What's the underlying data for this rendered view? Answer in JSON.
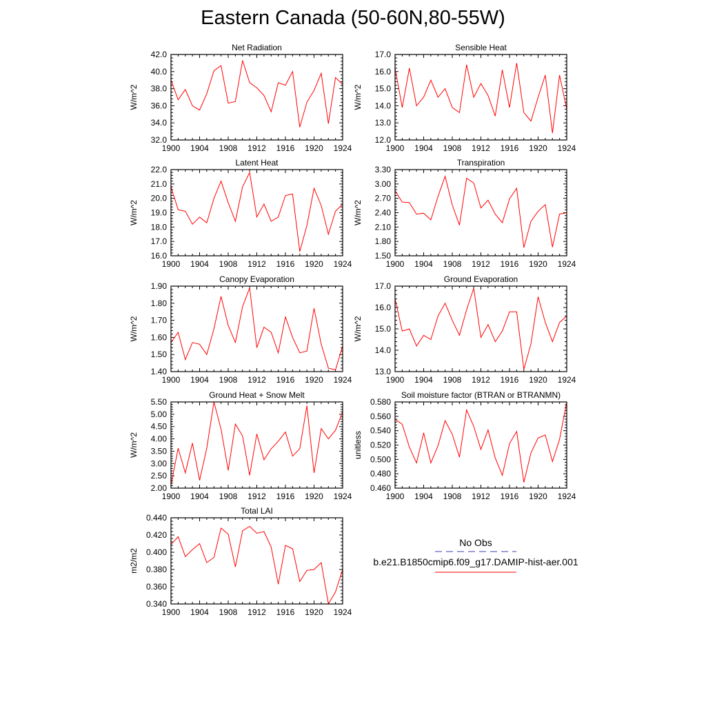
{
  "title": "Eastern Canada (50-60N,80-55W)",
  "legend": {
    "obs_label": "No Obs",
    "model_label": "b.e21.B1850cmip6.f09_g17.DAMIP-hist-aer.001",
    "obs_color": "#3b3bb0",
    "model_color": "#ff0000"
  },
  "chart_data": [
    {
      "type": "line",
      "title": "Net Radiation",
      "ylabel": "W/m^2",
      "ylim": [
        32.0,
        42.0
      ],
      "yticks": [
        32.0,
        34.0,
        36.0,
        38.0,
        40.0,
        42.0
      ],
      "ydecimals": 1,
      "xlim": [
        1900,
        1924
      ],
      "xticks": [
        1900,
        1904,
        1908,
        1912,
        1916,
        1920,
        1924
      ],
      "series": [
        {
          "color": "#ff0000",
          "x": [
            1900,
            1901,
            1902,
            1903,
            1904,
            1905,
            1906,
            1907,
            1908,
            1909,
            1910,
            1911,
            1912,
            1913,
            1914,
            1915,
            1916,
            1917,
            1918,
            1919,
            1920,
            1921,
            1922,
            1923,
            1924
          ],
          "values": [
            39.0,
            36.7,
            37.9,
            36.0,
            35.5,
            37.4,
            40.1,
            40.7,
            36.3,
            36.5,
            41.3,
            38.7,
            38.1,
            37.2,
            35.3,
            38.7,
            38.4,
            40.0,
            33.5,
            36.4,
            37.8,
            39.8,
            33.9,
            39.3,
            38.5
          ]
        }
      ]
    },
    {
      "type": "line",
      "title": "Sensible Heat",
      "ylabel": "W/m^2",
      "ylim": [
        12.0,
        17.0
      ],
      "yticks": [
        12.0,
        13.0,
        14.0,
        15.0,
        16.0,
        17.0
      ],
      "ydecimals": 1,
      "xlim": [
        1900,
        1924
      ],
      "xticks": [
        1900,
        1904,
        1908,
        1912,
        1916,
        1920,
        1924
      ],
      "series": [
        {
          "color": "#ff0000",
          "x": [
            1900,
            1901,
            1902,
            1903,
            1904,
            1905,
            1906,
            1907,
            1908,
            1909,
            1910,
            1911,
            1912,
            1913,
            1914,
            1915,
            1916,
            1917,
            1918,
            1919,
            1920,
            1921,
            1922,
            1923,
            1924
          ],
          "values": [
            16.2,
            13.9,
            16.2,
            14.0,
            14.5,
            15.5,
            14.5,
            15.0,
            13.9,
            13.6,
            16.4,
            14.5,
            15.3,
            14.6,
            13.4,
            16.1,
            13.9,
            16.5,
            13.6,
            13.1,
            14.5,
            15.8,
            12.4,
            15.8,
            13.8
          ]
        }
      ]
    },
    {
      "type": "line",
      "title": "Latent Heat",
      "ylabel": "W/m^2",
      "ylim": [
        16.0,
        22.0
      ],
      "yticks": [
        16.0,
        17.0,
        18.0,
        19.0,
        20.0,
        21.0,
        22.0
      ],
      "ydecimals": 1,
      "xlim": [
        1900,
        1924
      ],
      "xticks": [
        1900,
        1904,
        1908,
        1912,
        1916,
        1920,
        1924
      ],
      "series": [
        {
          "color": "#ff0000",
          "x": [
            1900,
            1901,
            1902,
            1903,
            1904,
            1905,
            1906,
            1907,
            1908,
            1909,
            1910,
            1911,
            1912,
            1913,
            1914,
            1915,
            1916,
            1917,
            1918,
            1919,
            1920,
            1921,
            1922,
            1923,
            1924
          ],
          "values": [
            20.8,
            19.2,
            19.1,
            18.2,
            18.7,
            18.3,
            20.0,
            21.2,
            19.7,
            18.4,
            20.8,
            21.8,
            18.7,
            19.6,
            18.4,
            18.7,
            20.2,
            20.3,
            16.3,
            18.1,
            20.7,
            19.5,
            17.5,
            19.1,
            19.6
          ]
        }
      ]
    },
    {
      "type": "line",
      "title": "Transpiration",
      "ylabel": "W/m^2",
      "ylim": [
        1.5,
        3.3
      ],
      "yticks": [
        1.5,
        1.8,
        2.1,
        2.4,
        2.7,
        3.0,
        3.3
      ],
      "ydecimals": 2,
      "xlim": [
        1900,
        1924
      ],
      "xticks": [
        1900,
        1904,
        1908,
        1912,
        1916,
        1920,
        1924
      ],
      "series": [
        {
          "color": "#ff0000",
          "x": [
            1900,
            1901,
            1902,
            1903,
            1904,
            1905,
            1906,
            1907,
            1908,
            1909,
            1910,
            1911,
            1912,
            1913,
            1914,
            1915,
            1916,
            1917,
            1918,
            1919,
            1920,
            1921,
            1922,
            1923,
            1924
          ],
          "values": [
            2.86,
            2.62,
            2.61,
            2.37,
            2.39,
            2.25,
            2.74,
            3.16,
            2.56,
            2.14,
            3.12,
            3.02,
            2.5,
            2.66,
            2.37,
            2.19,
            2.69,
            2.91,
            1.67,
            2.22,
            2.43,
            2.57,
            1.68,
            2.37,
            2.4
          ]
        }
      ]
    },
    {
      "type": "line",
      "title": "Canopy Evaporation",
      "ylabel": "W/m^2",
      "ylim": [
        1.4,
        1.9
      ],
      "yticks": [
        1.4,
        1.5,
        1.6,
        1.7,
        1.8,
        1.9
      ],
      "ydecimals": 2,
      "xlim": [
        1900,
        1924
      ],
      "xticks": [
        1900,
        1904,
        1908,
        1912,
        1916,
        1920,
        1924
      ],
      "series": [
        {
          "color": "#ff0000",
          "x": [
            1900,
            1901,
            1902,
            1903,
            1904,
            1905,
            1906,
            1907,
            1908,
            1909,
            1910,
            1911,
            1912,
            1913,
            1914,
            1915,
            1916,
            1917,
            1918,
            1919,
            1920,
            1921,
            1922,
            1923,
            1924
          ],
          "values": [
            1.57,
            1.63,
            1.47,
            1.57,
            1.56,
            1.5,
            1.65,
            1.84,
            1.67,
            1.57,
            1.78,
            1.89,
            1.54,
            1.66,
            1.63,
            1.51,
            1.72,
            1.6,
            1.51,
            1.52,
            1.77,
            1.56,
            1.42,
            1.41,
            1.55
          ]
        }
      ]
    },
    {
      "type": "line",
      "title": "Ground Evaporation",
      "ylabel": "W/m^2",
      "ylim": [
        13.0,
        17.0
      ],
      "yticks": [
        13.0,
        14.0,
        15.0,
        16.0,
        17.0
      ],
      "ydecimals": 1,
      "xlim": [
        1900,
        1924
      ],
      "xticks": [
        1900,
        1904,
        1908,
        1912,
        1916,
        1920,
        1924
      ],
      "series": [
        {
          "color": "#ff0000",
          "x": [
            1900,
            1901,
            1902,
            1903,
            1904,
            1905,
            1906,
            1907,
            1908,
            1909,
            1910,
            1911,
            1912,
            1913,
            1914,
            1915,
            1916,
            1917,
            1918,
            1919,
            1920,
            1921,
            1922,
            1923,
            1924
          ],
          "values": [
            16.4,
            14.9,
            15.0,
            14.2,
            14.7,
            14.5,
            15.6,
            16.2,
            15.4,
            14.7,
            15.9,
            16.9,
            14.6,
            15.2,
            14.4,
            14.9,
            15.8,
            15.8,
            13.1,
            14.3,
            16.5,
            15.3,
            14.4,
            15.3,
            15.6
          ]
        }
      ]
    },
    {
      "type": "line",
      "title": "Ground Heat + Snow Melt",
      "ylabel": "W/m^2",
      "ylim": [
        2.0,
        5.5
      ],
      "yticks": [
        2.0,
        2.5,
        3.0,
        3.5,
        4.0,
        4.5,
        5.0,
        5.5
      ],
      "ydecimals": 2,
      "xlim": [
        1900,
        1924
      ],
      "xticks": [
        1900,
        1904,
        1908,
        1912,
        1916,
        1920,
        1924
      ],
      "series": [
        {
          "color": "#ff0000",
          "x": [
            1900,
            1901,
            1902,
            1903,
            1904,
            1905,
            1906,
            1907,
            1908,
            1909,
            1910,
            1911,
            1912,
            1913,
            1914,
            1915,
            1916,
            1917,
            1918,
            1919,
            1920,
            1921,
            1922,
            1923,
            1924
          ],
          "values": [
            2.12,
            3.62,
            2.62,
            3.83,
            2.32,
            3.62,
            5.5,
            4.4,
            2.72,
            4.6,
            4.12,
            2.52,
            4.2,
            3.15,
            3.6,
            3.9,
            4.28,
            3.3,
            3.6,
            5.35,
            2.62,
            4.42,
            4.0,
            4.35,
            5.1
          ]
        }
      ]
    },
    {
      "type": "line",
      "title": "Soil moisture factor (BTRAN or BTRANMN)",
      "ylabel": "unitless",
      "ylim": [
        0.46,
        0.58
      ],
      "yticks": [
        0.46,
        0.48,
        0.5,
        0.52,
        0.54,
        0.56,
        0.58
      ],
      "ydecimals": 3,
      "xlim": [
        1900,
        1924
      ],
      "xticks": [
        1900,
        1904,
        1908,
        1912,
        1916,
        1920,
        1924
      ],
      "series": [
        {
          "color": "#ff0000",
          "x": [
            1900,
            1901,
            1902,
            1903,
            1904,
            1905,
            1906,
            1907,
            1908,
            1909,
            1910,
            1911,
            1912,
            1913,
            1914,
            1915,
            1916,
            1917,
            1918,
            1919,
            1920,
            1921,
            1922,
            1923,
            1924
          ],
          "values": [
            0.556,
            0.549,
            0.517,
            0.495,
            0.537,
            0.495,
            0.519,
            0.554,
            0.535,
            0.503,
            0.569,
            0.546,
            0.514,
            0.541,
            0.502,
            0.478,
            0.522,
            0.539,
            0.468,
            0.509,
            0.53,
            0.534,
            0.497,
            0.528,
            0.58
          ]
        }
      ]
    },
    {
      "type": "line",
      "title": "Total LAI",
      "ylabel": "m2/m2",
      "ylim": [
        0.34,
        0.44
      ],
      "yticks": [
        0.34,
        0.36,
        0.38,
        0.4,
        0.42,
        0.44
      ],
      "ydecimals": 3,
      "xlim": [
        1900,
        1924
      ],
      "xticks": [
        1900,
        1904,
        1908,
        1912,
        1916,
        1920,
        1924
      ],
      "series": [
        {
          "color": "#ff0000",
          "x": [
            1900,
            1901,
            1902,
            1903,
            1904,
            1905,
            1906,
            1907,
            1908,
            1909,
            1910,
            1911,
            1912,
            1913,
            1914,
            1915,
            1916,
            1917,
            1918,
            1919,
            1920,
            1921,
            1922,
            1923,
            1924
          ],
          "values": [
            0.409,
            0.418,
            0.395,
            0.403,
            0.41,
            0.388,
            0.394,
            0.428,
            0.421,
            0.383,
            0.425,
            0.43,
            0.422,
            0.424,
            0.406,
            0.363,
            0.408,
            0.404,
            0.366,
            0.379,
            0.38,
            0.388,
            0.34,
            0.354,
            0.38
          ]
        }
      ]
    }
  ]
}
